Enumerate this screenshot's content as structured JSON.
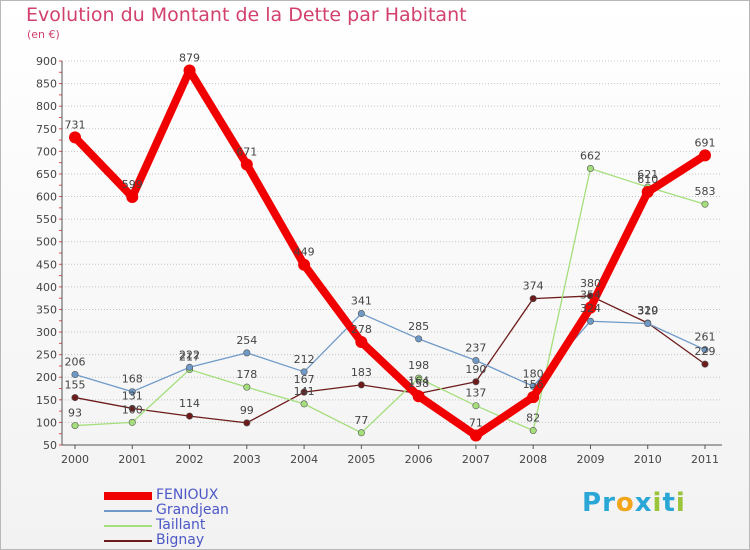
{
  "header": {
    "title": "Evolution du Montant de la Dette par Habitant",
    "unit": "(en €)"
  },
  "logo": {
    "text": "Proxiti",
    "letters": [
      {
        "ch": "P",
        "color": "#2aa7d6"
      },
      {
        "ch": "r",
        "color": "#2aa7d6"
      },
      {
        "ch": "o",
        "color": "#f2a51a"
      },
      {
        "ch": "x",
        "color": "#2aa7d6"
      },
      {
        "ch": "i",
        "color": "#9ac43a"
      },
      {
        "ch": "t",
        "color": "#2aa7d6"
      },
      {
        "ch": "i",
        "color": "#9ac43a"
      }
    ]
  },
  "chart_data": {
    "type": "line",
    "title": "Evolution du Montant de la Dette par Habitant",
    "subtitle": "(en €)",
    "x": [
      "2000",
      "2001",
      "2002",
      "2003",
      "2004",
      "2005",
      "2006",
      "2007",
      "2008",
      "2009",
      "2010",
      "2011"
    ],
    "ylim": [
      50,
      900
    ],
    "yticks": [
      50,
      100,
      150,
      200,
      250,
      300,
      350,
      400,
      450,
      500,
      550,
      600,
      650,
      700,
      750,
      800,
      850,
      900
    ],
    "grid": "horizontal dotted",
    "legend_position": "bottom-left",
    "series": [
      {
        "name": "FENIOUX",
        "color": "#f00000",
        "values": [
          731,
          599,
          879,
          671,
          449,
          278,
          158,
          71,
          156,
          354,
          610,
          691
        ]
      },
      {
        "name": "Grandjean",
        "color": "#6f9ac8",
        "values": [
          206,
          168,
          222,
          254,
          212,
          341,
          285,
          237,
          180,
          324,
          319,
          261
        ]
      },
      {
        "name": "Taillant",
        "color": "#a4df7c",
        "values": [
          93,
          100,
          217,
          178,
          141,
          77,
          198,
          137,
          82,
          662,
          621,
          583
        ]
      },
      {
        "name": "Bignay",
        "color": "#6d1b1b",
        "values": [
          155,
          131,
          114,
          99,
          167,
          183,
          164,
          190,
          374,
          380,
          320,
          229
        ]
      }
    ]
  }
}
